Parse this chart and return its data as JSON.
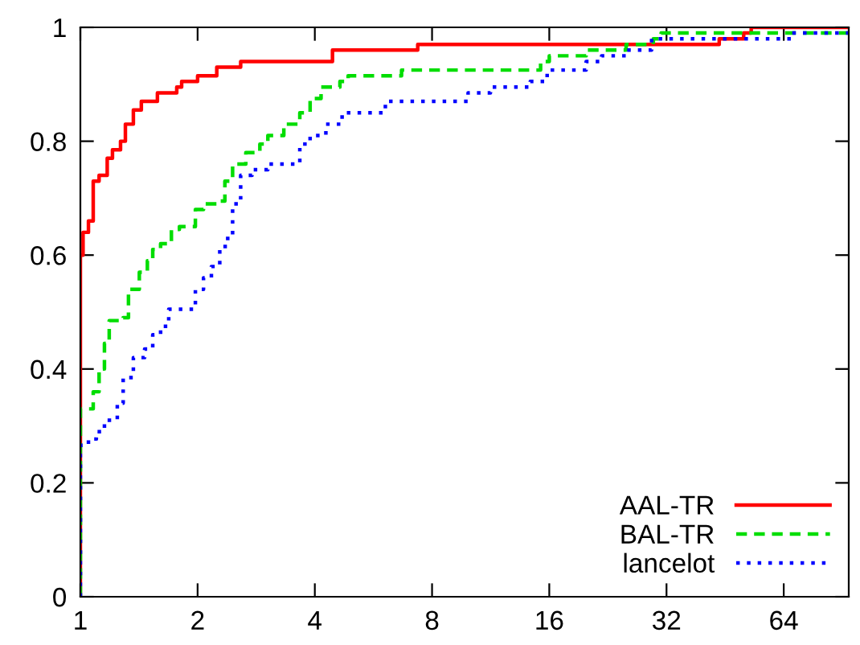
{
  "chart_data": {
    "type": "step",
    "xlim": [
      1,
      94
    ],
    "log": "x",
    "xticks": [
      1,
      2,
      4,
      8,
      16,
      32,
      64
    ],
    "ylim": [
      0,
      1
    ],
    "yticks": [
      0,
      {
        "value": 0.2,
        "label": "0.2"
      },
      {
        "value": 0.4,
        "label": "0.4"
      },
      {
        "value": 0.6,
        "label": "0.6"
      },
      {
        "value": 0.8,
        "label": "0.8"
      },
      1
    ],
    "grid": false,
    "legend": "bottom right",
    "marker": "none",
    "series": [
      {
        "name": "AAL-TR",
        "color": "#ff0000",
        "line_style": "solid",
        "x": [
          1,
          1,
          1.016,
          1.049,
          1.079,
          1.117,
          1.172,
          1.209,
          1.268,
          1.305,
          1.368,
          1.434,
          1.577,
          1.768,
          1.82,
          2.0,
          2.24,
          2.58,
          4.44,
          7.35,
          43.7,
          50.5,
          52.8,
          94
        ],
        "values": [
          0,
          0.6,
          0.64,
          0.66,
          0.73,
          0.74,
          0.77,
          0.785,
          0.8,
          0.83,
          0.855,
          0.87,
          0.885,
          0.895,
          0.905,
          0.915,
          0.93,
          0.94,
          0.96,
          0.97,
          0.98,
          0.99,
          1.0,
          1.0
        ]
      },
      {
        "name": "BAL-TR",
        "color": "#00dd00",
        "line_style": "dashed",
        "x": [
          1,
          1,
          1.079,
          1.117,
          1.153,
          1.186,
          1.288,
          1.329,
          1.417,
          1.486,
          1.534,
          1.607,
          1.713,
          1.796,
          1.974,
          2.071,
          2.24,
          2.35,
          2.46,
          2.66,
          2.89,
          3.03,
          3.33,
          3.66,
          3.89,
          4.15,
          4.64,
          4.87,
          6.68,
          15.2,
          16.0,
          19.9,
          25.2,
          29.6,
          31.0,
          94
        ],
        "values": [
          0,
          0.33,
          0.36,
          0.4,
          0.445,
          0.485,
          0.49,
          0.54,
          0.57,
          0.59,
          0.61,
          0.62,
          0.645,
          0.65,
          0.68,
          0.69,
          0.695,
          0.73,
          0.76,
          0.78,
          0.795,
          0.81,
          0.83,
          0.85,
          0.875,
          0.895,
          0.905,
          0.915,
          0.925,
          0.94,
          0.95,
          0.96,
          0.97,
          0.98,
          0.99,
          0.99
        ]
      },
      {
        "name": "lancelot",
        "color": "#0000ff",
        "line_style": "dotted",
        "x": [
          1,
          1,
          1.049,
          1.099,
          1.153,
          1.244,
          1.288,
          1.368,
          1.462,
          1.534,
          1.607,
          1.686,
          1.974,
          2.071,
          2.17,
          2.28,
          2.39,
          2.46,
          2.58,
          2.76,
          3.03,
          3.66,
          3.89,
          4.27,
          4.7,
          6.07,
          9.9,
          11.3,
          14.3,
          15.8,
          19.9,
          21.8,
          25.2,
          29.3,
          67.2,
          94
        ],
        "values": [
          0,
          0.266,
          0.277,
          0.29,
          0.31,
          0.34,
          0.385,
          0.42,
          0.435,
          0.46,
          0.475,
          0.505,
          0.54,
          0.56,
          0.58,
          0.615,
          0.633,
          0.69,
          0.74,
          0.75,
          0.76,
          0.795,
          0.81,
          0.83,
          0.85,
          0.87,
          0.885,
          0.895,
          0.905,
          0.925,
          0.94,
          0.95,
          0.96,
          0.98,
          0.99,
          0.99
        ]
      }
    ]
  }
}
